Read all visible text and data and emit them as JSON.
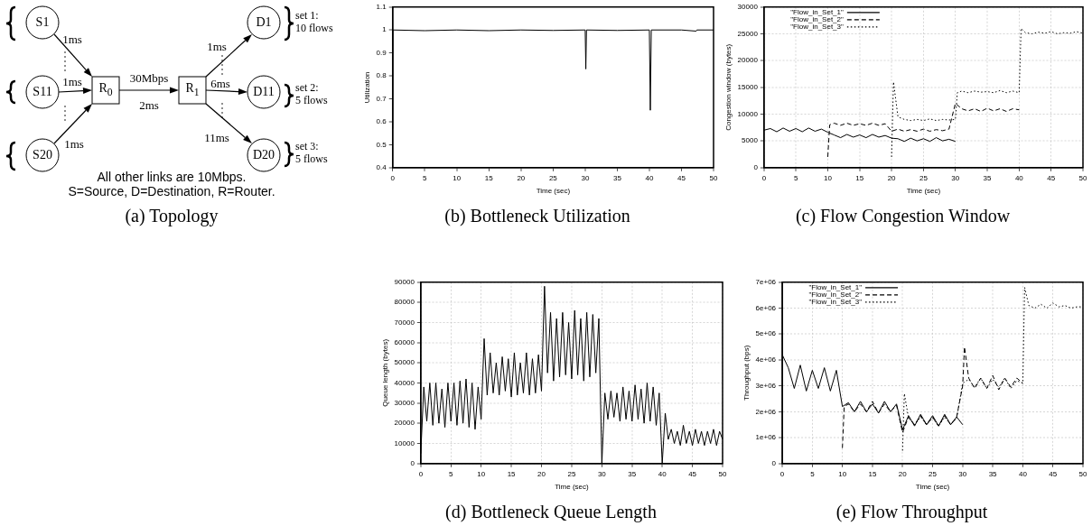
{
  "chart_data": [
    {
      "type": "other",
      "title": "(a) Topology",
      "annotations": [
        "S1",
        "S11",
        "S20",
        "R$_{0}$",
        "R$_{1}$",
        "D1",
        "D11",
        "D20",
        "1ms",
        "1ms",
        "1ms",
        "30Mbps",
        "2ms",
        "1ms",
        "6ms",
        "11ms",
        "set 1:\n10 flows",
        "set 2:\n5 flows",
        "set 3:\n5 flows",
        "All other links are 10Mbps.",
        "S=Source, D=Destination, R=Router."
      ]
    },
    {
      "type": "line",
      "title": "(b) Bottleneck Utilization",
      "xlabel": "Time (sec)",
      "ylabel": "Utilization",
      "xlim": [
        0,
        50
      ],
      "xticks": [
        0,
        5,
        10,
        15,
        20,
        25,
        30,
        35,
        40,
        45,
        50
      ],
      "ylim": [
        0.4,
        1.1
      ],
      "yticks": [
        0.4,
        0.5,
        0.6,
        0.7,
        0.8,
        0.9,
        1,
        1.1
      ],
      "grid": false,
      "marker": "none",
      "series": [
        {
          "color": "#000000",
          "x": [
            0,
            0.05,
            5,
            10,
            15,
            20,
            25,
            30,
            30.1,
            30.2,
            35,
            40,
            40.15,
            40.3,
            45,
            47.3,
            47.4,
            50
          ],
          "values": [
            0.57,
            1,
            0.997,
            1,
            0.997,
            1,
            0.998,
            1,
            0.83,
            1,
            0.998,
            1,
            0.65,
            1,
            1,
            0.995,
            1,
            1
          ]
        }
      ]
    },
    {
      "type": "line",
      "title": "(c) Flow Congestion Window",
      "xlabel": "Time (sec)",
      "ylabel": "Congestion window (bytes)",
      "xlim": [
        0,
        50
      ],
      "xticks": [
        0,
        5,
        10,
        15,
        20,
        25,
        30,
        35,
        40,
        45,
        50
      ],
      "ylim": [
        0,
        30000
      ],
      "yticks": [
        0,
        5000,
        10000,
        15000,
        20000,
        25000,
        30000
      ],
      "grid": true,
      "legend": "top left",
      "marker": "none",
      "series": [
        {
          "name": "\"Flow_in_Set_1\"",
          "color": "#000000",
          "line_style": "solid",
          "x": [
            0,
            1,
            2,
            3,
            4,
            5,
            6,
            7,
            8,
            9,
            10,
            11,
            12,
            13,
            14,
            15,
            16,
            17,
            18,
            19,
            20,
            21,
            22,
            23,
            24,
            25,
            26,
            27,
            28,
            29,
            30
          ],
          "values": [
            7000,
            7300,
            6700,
            7400,
            6800,
            7300,
            6700,
            7400,
            6800,
            7200,
            6600,
            6100,
            5600,
            6200,
            5700,
            6100,
            5600,
            6200,
            5700,
            6000,
            5500,
            5400,
            4900,
            5500,
            5000,
            5400,
            4900,
            5600,
            5000,
            5300,
            4900
          ]
        },
        {
          "name": "\"Flow_in_Set_2\"",
          "color": "#000000",
          "line_style": "dashed",
          "x": [
            10,
            10.3,
            11,
            12,
            13,
            14,
            15,
            16,
            17,
            18,
            19,
            20,
            21,
            22,
            23,
            24,
            25,
            26,
            27,
            28,
            29,
            30,
            31,
            32,
            33,
            34,
            35,
            36,
            37,
            38,
            39,
            40
          ],
          "values": [
            2000,
            8000,
            8300,
            7900,
            8300,
            7900,
            8200,
            7900,
            8300,
            7900,
            8200,
            6800,
            7200,
            6800,
            7100,
            6800,
            7200,
            6800,
            7100,
            6900,
            7200,
            12000,
            11000,
            10600,
            11000,
            10500,
            11100,
            10600,
            11000,
            10500,
            11000,
            10800
          ]
        },
        {
          "name": "\"Flow_in_Set_3\"",
          "color": "#000000",
          "line_style": "dotted",
          "x": [
            20,
            20.3,
            21,
            22,
            23,
            24,
            25,
            26,
            27,
            28,
            29,
            30,
            30.3,
            31,
            32,
            33,
            34,
            35,
            36,
            37,
            38,
            39,
            40,
            40.3,
            41,
            42,
            43,
            44,
            45,
            46,
            47,
            48,
            49,
            50
          ],
          "values": [
            2000,
            16000,
            9500,
            9000,
            8800,
            9000,
            8800,
            9100,
            8800,
            9000,
            8900,
            9000,
            14000,
            14300,
            14000,
            14300,
            14100,
            14200,
            14000,
            14400,
            14000,
            14300,
            14000,
            26000,
            25200,
            25000,
            25300,
            25100,
            25400,
            25000,
            25200,
            25100,
            25400,
            25100
          ]
        }
      ]
    },
    {
      "type": "line",
      "title": "(d) Bottleneck Queue Length",
      "xlabel": "Time (sec)",
      "ylabel": "Queue length (bytes)",
      "xlim": [
        0,
        50
      ],
      "xticks": [
        0,
        5,
        10,
        15,
        20,
        25,
        30,
        35,
        40,
        45,
        50
      ],
      "ylim": [
        0,
        90000
      ],
      "yticks": [
        0,
        10000,
        20000,
        30000,
        40000,
        50000,
        60000,
        70000,
        80000,
        90000
      ],
      "grid": true,
      "marker": "none",
      "series": [
        {
          "color": "#000000",
          "x": [
            0,
            0.5,
            1,
            1.5,
            2,
            2.5,
            3,
            3.5,
            4,
            4.5,
            5,
            5.5,
            6,
            6.5,
            7,
            7.5,
            8,
            8.5,
            9,
            9.5,
            10,
            10.5,
            11,
            11.5,
            12,
            12.5,
            13,
            13.5,
            14,
            14.5,
            15,
            15.5,
            16,
            16.5,
            17,
            17.5,
            18,
            18.5,
            19,
            19.5,
            20,
            20.5,
            21,
            21.5,
            22,
            22.5,
            23,
            23.5,
            24,
            24.5,
            25,
            25.5,
            26,
            26.5,
            27,
            27.5,
            28,
            28.5,
            29,
            29.5,
            30,
            30.5,
            31,
            31.5,
            32,
            32.5,
            33,
            33.5,
            34,
            34.5,
            35,
            35.5,
            36,
            36.5,
            37,
            37.5,
            38,
            38.5,
            39,
            39.5,
            40,
            40.5,
            41,
            41.5,
            42,
            42.5,
            43,
            43.5,
            44,
            44.5,
            45,
            45.5,
            46,
            46.5,
            47,
            47.5,
            48,
            48.5,
            49,
            49.5,
            50
          ],
          "values": [
            5000,
            38000,
            21000,
            40000,
            19000,
            40000,
            20000,
            37000,
            18000,
            40000,
            21000,
            40000,
            19000,
            41000,
            20000,
            42000,
            18000,
            40000,
            17000,
            38000,
            22000,
            62000,
            34000,
            55000,
            35000,
            50000,
            34000,
            53000,
            36000,
            52000,
            33000,
            55000,
            34000,
            50000,
            35000,
            55000,
            34000,
            52000,
            35000,
            54000,
            36000,
            88000,
            45000,
            75000,
            41000,
            72000,
            43000,
            75000,
            44000,
            70000,
            42000,
            76000,
            44000,
            72000,
            41000,
            75000,
            43000,
            74000,
            45000,
            72000,
            0,
            35000,
            22000,
            36000,
            23000,
            35000,
            21000,
            38000,
            22000,
            36000,
            21000,
            39000,
            22000,
            37000,
            20000,
            40000,
            21000,
            38000,
            19000,
            35000,
            0,
            25000,
            12000,
            17000,
            10000,
            16000,
            9000,
            19000,
            10000,
            16000,
            9000,
            17000,
            10000,
            16000,
            9000,
            16000,
            10000,
            17000,
            9000,
            16000,
            12000
          ]
        }
      ]
    },
    {
      "type": "line",
      "title": "(e) Flow Throughput",
      "xlabel": "Time (sec)",
      "ylabel": "Throughput (bps)",
      "xlim": [
        0,
        50
      ],
      "xticks": [
        0,
        5,
        10,
        15,
        20,
        25,
        30,
        35,
        40,
        45,
        50
      ],
      "ylim": [
        0,
        7000000
      ],
      "yticks": [
        0,
        {
          "value": 1000000,
          "label": "1e+06"
        },
        {
          "value": 2000000,
          "label": "2e+06"
        },
        {
          "value": 3000000,
          "label": "3e+06"
        },
        {
          "value": 4000000,
          "label": "4e+06"
        },
        {
          "value": 5000000,
          "label": "5e+06"
        },
        {
          "value": 6000000,
          "label": "6e+06"
        },
        {
          "value": 7000000,
          "label": "7e+06"
        }
      ],
      "grid": true,
      "legend": "top left",
      "marker": "none",
      "series": [
        {
          "name": "\"Flow_in_Set_1\"",
          "color": "#000000",
          "line_style": "solid",
          "x": [
            0,
            1,
            2,
            3,
            4,
            5,
            6,
            7,
            8,
            9,
            10,
            11,
            12,
            13,
            14,
            15,
            16,
            17,
            18,
            19,
            20,
            21,
            22,
            23,
            24,
            25,
            26,
            27,
            28,
            29,
            30
          ],
          "values": [
            4200000,
            3700000,
            2900000,
            3800000,
            2800000,
            3600000,
            2900000,
            3700000,
            2800000,
            3600000,
            2200000,
            2350000,
            2000000,
            2400000,
            2000000,
            2300000,
            1950000,
            2400000,
            2000000,
            2300000,
            1300000,
            1850000,
            1450000,
            1900000,
            1500000,
            1850000,
            1450000,
            1900000,
            1500000,
            1800000,
            1500000
          ]
        },
        {
          "name": "\"Flow_in_Set_2\"",
          "color": "#000000",
          "line_style": "dashed",
          "x": [
            10,
            10.3,
            11,
            12,
            13,
            14,
            15,
            16,
            17,
            18,
            19,
            20,
            21,
            22,
            23,
            24,
            25,
            26,
            27,
            28,
            29,
            30,
            30.3,
            31,
            32,
            33,
            34,
            35,
            36,
            37,
            38,
            39,
            40
          ],
          "values": [
            600000,
            2200000,
            2300000,
            2000000,
            2300000,
            2000000,
            2400000,
            1950000,
            2300000,
            2000000,
            2250000,
            1200000,
            1800000,
            1500000,
            1850000,
            1500000,
            1800000,
            1450000,
            1850000,
            1500000,
            1800000,
            3000000,
            4500000,
            3300000,
            2900000,
            3300000,
            2900000,
            3400000,
            2850000,
            3300000,
            2950000,
            3300000,
            3100000
          ]
        },
        {
          "name": "\"Flow_in_Set_3\"",
          "color": "#000000",
          "line_style": "dotted",
          "x": [
            20,
            20.3,
            21,
            22,
            23,
            24,
            25,
            26,
            27,
            28,
            29,
            30,
            31,
            32,
            33,
            34,
            35,
            36,
            37,
            38,
            39,
            40,
            40.3,
            41,
            42,
            43,
            44,
            45,
            46,
            47,
            48,
            49,
            50
          ],
          "values": [
            500000,
            2700000,
            1750000,
            1500000,
            1800000,
            1500000,
            1750000,
            1450000,
            1800000,
            1500000,
            1750000,
            3100000,
            3250000,
            2950000,
            3300000,
            2900000,
            3250000,
            2950000,
            3300000,
            2900000,
            3200000,
            3100000,
            6800000,
            6100000,
            6000000,
            6150000,
            6000000,
            6200000,
            6050000,
            6100000,
            6000000,
            6050000,
            6050000
          ]
        }
      ]
    }
  ]
}
